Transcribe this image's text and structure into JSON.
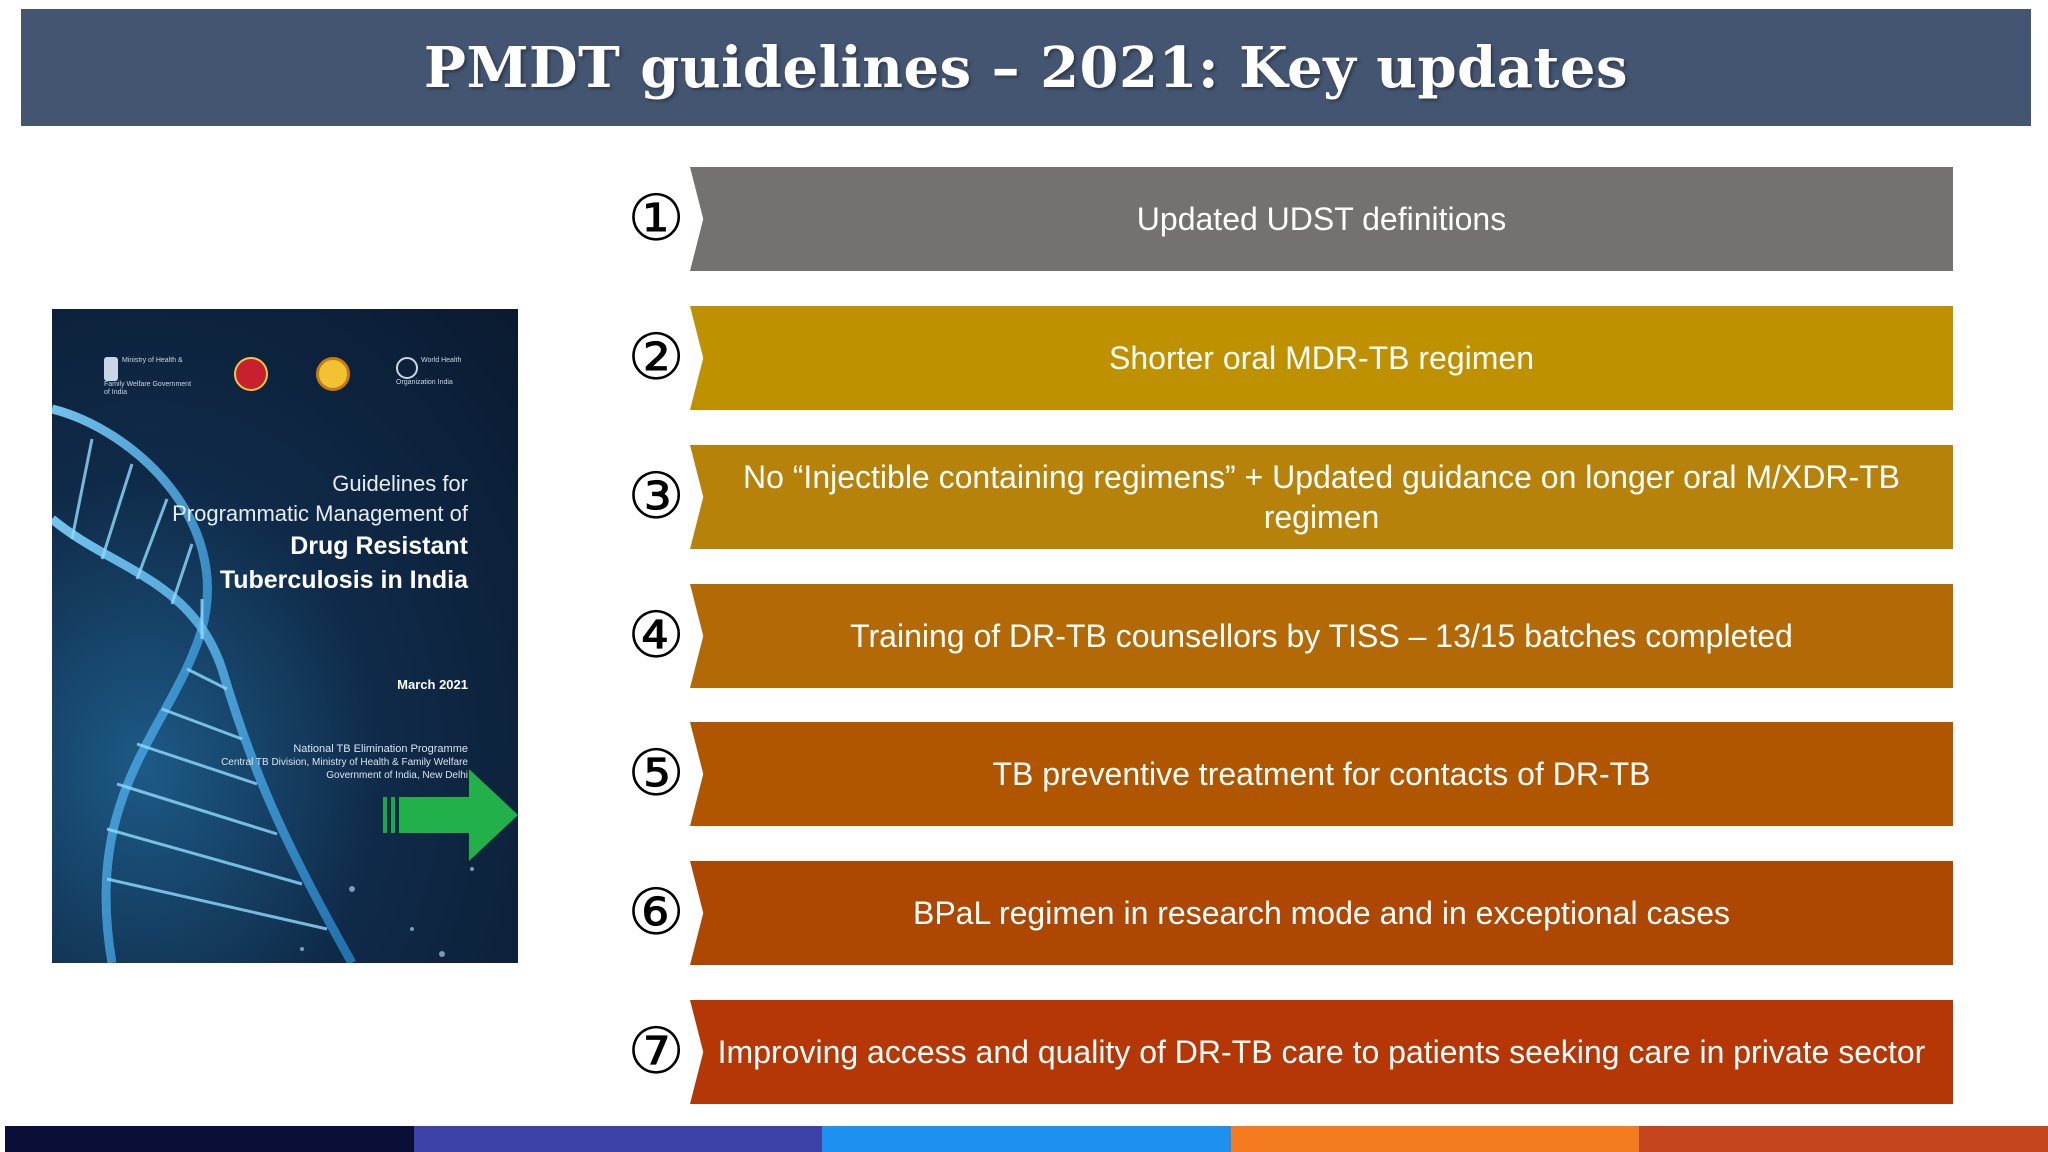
{
  "title": "PMDT guidelines – 2021: Key updates",
  "cover": {
    "logo_moh": "Ministry of Health & Family Welfare Government of India",
    "logo_who": "World Health Organization India",
    "title_line1": "Guidelines for",
    "title_line2": "Programmatic Management of",
    "title_line3": "Drug Resistant",
    "title_line4": "Tuberculosis in India",
    "date": "March 2021",
    "org_line1": "National TB Elimination Programme",
    "org_line2": "Central TB Division, Ministry of Health & Family Welfare",
    "org_line3": "Government of India, New Delhi"
  },
  "items": [
    {
      "number": "1",
      "text": "Updated UDST definitions",
      "color": "#767171"
    },
    {
      "number": "2",
      "text": "Shorter oral MDR-TB regimen",
      "color": "#BF9000"
    },
    {
      "number": "3",
      "text": "No “Injectible containing regimens” + Updated guidance on longer oral M/XDR-TB regimen",
      "color": "#B78209"
    },
    {
      "number": "4",
      "text": "Training of DR-TB counsellors by TISS – 13/15 batches completed",
      "color": "#B36A06"
    },
    {
      "number": "5",
      "text": "TB preventive treatment for contacts of DR-TB",
      "color": "#B05600"
    },
    {
      "number": "6",
      "text": "BPaL regimen in research mode and in exceptional cases",
      "color": "#AE4702"
    },
    {
      "number": "7",
      "text": "Improving access and quality of DR-TB care to patients seeking care in private sector",
      "color": "#B53706"
    }
  ],
  "bottom_stripe_colors": [
    "#0A0F38",
    "#3B41A6",
    "#1E90F0",
    "#F47B20",
    "#C4451E"
  ]
}
